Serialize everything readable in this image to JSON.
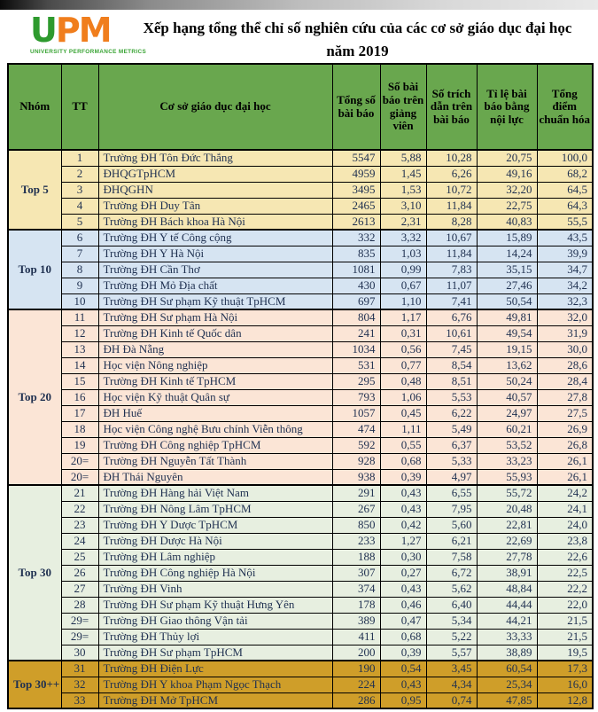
{
  "logo": {
    "u": "U",
    "p": "P",
    "m": "M",
    "tagline": "UNIVERSITY PERFORMANCE METRICS"
  },
  "title": {
    "line1": "Xếp hạng tổng thể chỉ số nghiên cứu của các cơ sở giáo dục đại học",
    "line2": "năm 2019"
  },
  "colors": {
    "header_green": "#69a74e",
    "text_dark": "#1f3050",
    "logo_green": "#2e9a2e",
    "logo_orange": "#f07e1d",
    "top5": "#f6e7b3",
    "top10": "#d6e4f2",
    "top20": "#fbe5d6",
    "top30": "#e7efe0",
    "top30pp": "#cf9e29"
  },
  "table": {
    "headers": [
      "Nhóm",
      "TT",
      "Cơ sở giáo dục đại học",
      "Tổng số bài báo",
      "Số bài báo trên giảng viên",
      "Số trích dẫn trên bài báo",
      "Tỉ lệ bài báo bằng nội lực",
      "Tổng điểm chuẩn hóa"
    ],
    "groups": [
      {
        "name": "Top 5",
        "color": "#f6e7b3",
        "rows": [
          {
            "tt": "1",
            "name": "Trường ĐH Tôn Đức Thắng",
            "papers": "5547",
            "per_lecturer": "5,88",
            "citations": "10,28",
            "internal": "20,75",
            "score": "100,0"
          },
          {
            "tt": "2",
            "name": "ĐHQGTpHCM",
            "papers": "4959",
            "per_lecturer": "1,45",
            "citations": "6,26",
            "internal": "49,16",
            "score": "68,2"
          },
          {
            "tt": "3",
            "name": "ĐHQGHN",
            "papers": "3495",
            "per_lecturer": "1,53",
            "citations": "10,72",
            "internal": "32,20",
            "score": "64,5"
          },
          {
            "tt": "4",
            "name": "Trường ĐH Duy Tân",
            "papers": "2465",
            "per_lecturer": "3,10",
            "citations": "11,84",
            "internal": "22,75",
            "score": "64,3"
          },
          {
            "tt": "5",
            "name": "Trường ĐH Bách khoa Hà Nội",
            "papers": "2613",
            "per_lecturer": "2,31",
            "citations": "8,28",
            "internal": "40,83",
            "score": "55,5"
          }
        ]
      },
      {
        "name": "Top 10",
        "color": "#d6e4f2",
        "rows": [
          {
            "tt": "6",
            "name": "Trường ĐH Y tế Công cộng",
            "papers": "332",
            "per_lecturer": "3,32",
            "citations": "10,67",
            "internal": "15,89",
            "score": "43,5"
          },
          {
            "tt": "7",
            "name": "Trường ĐH Y Hà Nội",
            "papers": "835",
            "per_lecturer": "1,03",
            "citations": "11,84",
            "internal": "14,24",
            "score": "39,9"
          },
          {
            "tt": "8",
            "name": "Trường ĐH Cần Thơ",
            "papers": "1081",
            "per_lecturer": "0,99",
            "citations": "7,83",
            "internal": "35,15",
            "score": "34,7"
          },
          {
            "tt": "9",
            "name": "Trường ĐH Mỏ Địa chất",
            "papers": "430",
            "per_lecturer": "0,67",
            "citations": "11,07",
            "internal": "27,46",
            "score": "34,2"
          },
          {
            "tt": "10",
            "name": "Trường ĐH Sư phạm Kỹ thuật TpHCM",
            "papers": "697",
            "per_lecturer": "1,10",
            "citations": "7,41",
            "internal": "50,54",
            "score": "32,3"
          }
        ]
      },
      {
        "name": "Top 20",
        "color": "#fbe5d6",
        "rows": [
          {
            "tt": "11",
            "name": "Trường ĐH Sư phạm Hà Nội",
            "papers": "804",
            "per_lecturer": "1,17",
            "citations": "6,76",
            "internal": "49,81",
            "score": "32,0"
          },
          {
            "tt": "12",
            "name": "Trường ĐH Kinh tế Quốc dân",
            "papers": "241",
            "per_lecturer": "0,31",
            "citations": "10,61",
            "internal": "49,54",
            "score": "31,9"
          },
          {
            "tt": "13",
            "name": "ĐH Đà Nẵng",
            "papers": "1034",
            "per_lecturer": "0,56",
            "citations": "7,45",
            "internal": "19,15",
            "score": "30,0"
          },
          {
            "tt": "14",
            "name": "Học viện Nông nghiệp",
            "papers": "531",
            "per_lecturer": "0,77",
            "citations": "8,54",
            "internal": "13,62",
            "score": "28,6"
          },
          {
            "tt": "15",
            "name": "Trường ĐH Kinh tế TpHCM",
            "papers": "295",
            "per_lecturer": "0,48",
            "citations": "8,51",
            "internal": "50,24",
            "score": "28,4"
          },
          {
            "tt": "16",
            "name": "Học viện Kỹ thuật Quân sự",
            "papers": "793",
            "per_lecturer": "1,06",
            "citations": "5,53",
            "internal": "40,57",
            "score": "27,8"
          },
          {
            "tt": "17",
            "name": "ĐH Huế",
            "papers": "1057",
            "per_lecturer": "0,45",
            "citations": "6,22",
            "internal": "24,97",
            "score": "27,5"
          },
          {
            "tt": "18",
            "name": "Học viện Công nghệ Bưu chính Viễn thông",
            "papers": "474",
            "per_lecturer": "1,11",
            "citations": "5,49",
            "internal": "60,21",
            "score": "26,9"
          },
          {
            "tt": "19",
            "name": "Trường ĐH Công nghiệp TpHCM",
            "papers": "592",
            "per_lecturer": "0,55",
            "citations": "6,37",
            "internal": "53,52",
            "score": "26,8"
          },
          {
            "tt": "20=",
            "name": "Trường ĐH Nguyễn Tất Thành",
            "papers": "928",
            "per_lecturer": "0,68",
            "citations": "5,33",
            "internal": "33,23",
            "score": "26,1"
          },
          {
            "tt": "20=",
            "name": "ĐH Thái Nguyên",
            "papers": "938",
            "per_lecturer": "0,39",
            "citations": "4,97",
            "internal": "55,93",
            "score": "26,1"
          }
        ]
      },
      {
        "name": "Top 30",
        "color": "#e7efe0",
        "rows": [
          {
            "tt": "21",
            "name": "Trường ĐH Hàng hải Việt Nam",
            "papers": "291",
            "per_lecturer": "0,43",
            "citations": "6,55",
            "internal": "55,72",
            "score": "24,2"
          },
          {
            "tt": "22",
            "name": "Trường ĐH Nông Lâm TpHCM",
            "papers": "267",
            "per_lecturer": "0,43",
            "citations": "7,95",
            "internal": "20,48",
            "score": "24,1"
          },
          {
            "tt": "23",
            "name": "Trường ĐH Y Dược TpHCM",
            "papers": "850",
            "per_lecturer": "0,42",
            "citations": "5,60",
            "internal": "22,81",
            "score": "24,0"
          },
          {
            "tt": "24",
            "name": "Trường ĐH Dược Hà Nội",
            "papers": "233",
            "per_lecturer": "1,27",
            "citations": "6,21",
            "internal": "22,69",
            "score": "23,8"
          },
          {
            "tt": "25",
            "name": "Trường ĐH Lâm nghiệp",
            "papers": "188",
            "per_lecturer": "0,30",
            "citations": "7,58",
            "internal": "27,78",
            "score": "22,6"
          },
          {
            "tt": "26",
            "name": "Trường ĐH Công nghiệp Hà Nội",
            "papers": "307",
            "per_lecturer": "0,27",
            "citations": "6,72",
            "internal": "38,91",
            "score": "22,5"
          },
          {
            "tt": "27",
            "name": "Trường ĐH Vinh",
            "papers": "374",
            "per_lecturer": "0,43",
            "citations": "5,62",
            "internal": "48,84",
            "score": "22,2"
          },
          {
            "tt": "28",
            "name": "Trường ĐH Sư phạm Kỹ thuật Hưng Yên",
            "papers": "178",
            "per_lecturer": "0,46",
            "citations": "6,40",
            "internal": "44,44",
            "score": "22,0"
          },
          {
            "tt": "29=",
            "name": "Trường ĐH Giao thông Vận tải",
            "papers": "389",
            "per_lecturer": "0,47",
            "citations": "5,34",
            "internal": "44,21",
            "score": "21,5"
          },
          {
            "tt": "29=",
            "name": "Trường ĐH Thủy lợi",
            "papers": "411",
            "per_lecturer": "0,68",
            "citations": "5,22",
            "internal": "33,33",
            "score": "21,5"
          },
          {
            "tt": "30",
            "name": "Trường ĐH Sư phạm TpHCM",
            "papers": "200",
            "per_lecturer": "0,39",
            "citations": "5,57",
            "internal": "38,89",
            "score": "19,5"
          }
        ]
      },
      {
        "name": "Top 30++",
        "color": "#cf9e29",
        "rows": [
          {
            "tt": "31",
            "name": "Trường ĐH Điện Lực",
            "papers": "190",
            "per_lecturer": "0,54",
            "citations": "3,45",
            "internal": "60,54",
            "score": "17,3"
          },
          {
            "tt": "32",
            "name": "Trường ĐH Y khoa Phạm Ngọc Thạch",
            "papers": "224",
            "per_lecturer": "0,43",
            "citations": "4,34",
            "internal": "25,34",
            "score": "16,0"
          },
          {
            "tt": "33",
            "name": "Trường ĐH Mở TpHCM",
            "papers": "286",
            "per_lecturer": "0,95",
            "citations": "0,74",
            "internal": "47,85",
            "score": "12,8"
          }
        ]
      }
    ]
  }
}
